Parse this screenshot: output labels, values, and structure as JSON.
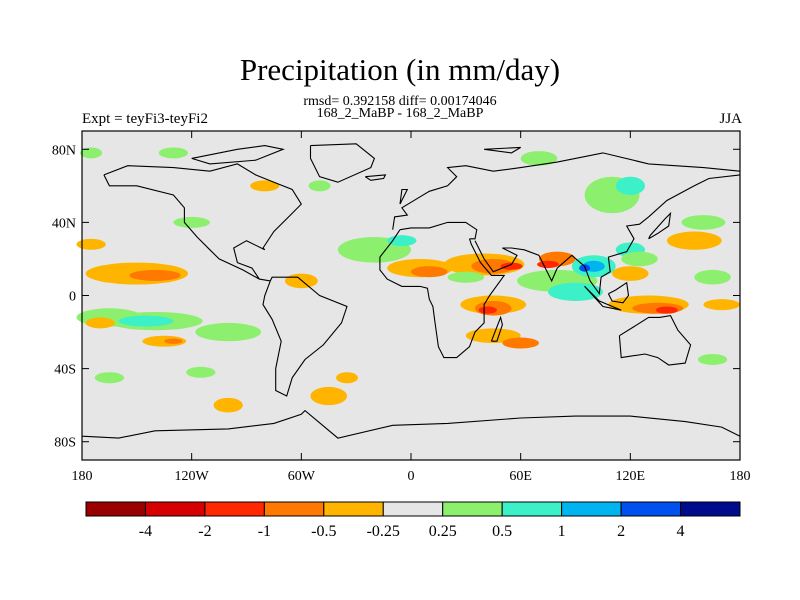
{
  "title": "Precipitation (in mm/day)",
  "stats": "rmsd= 0.392158 diff= 0.00174046",
  "subtitle": "168_2_MaBP - 168_2_MaBP",
  "left_label": "Expt = teyFi3-teyFi2",
  "right_label": "JJA",
  "map": {
    "lon_range": [
      -180,
      180
    ],
    "lat_range": [
      -90,
      90
    ],
    "x_ticks": [
      "180",
      "120W",
      "60W",
      "0",
      "60E",
      "120E",
      "180"
    ],
    "y_ticks": [
      "80N",
      "40N",
      "0",
      "40S",
      "80S"
    ],
    "background": "#e6e6e6"
  },
  "colorbar": {
    "labels": [
      "-4",
      "-2",
      "-1",
      "-0.5",
      "-0.25",
      "0.25",
      "0.5",
      "1",
      "2",
      "4"
    ],
    "colors": [
      "#9b0000",
      "#d60000",
      "#ff2800",
      "#ff7800",
      "#ffb400",
      "#e6e6e6",
      "#8cf06e",
      "#3cf0c8",
      "#00b4f0",
      "#0050f0",
      "#000a8c"
    ]
  },
  "levels": {
    "neg_weak": "#ffb400",
    "neg_mid": "#ff7800",
    "neg_strong": "#ff2800",
    "neg_max": "#d60000",
    "pos_weak": "#8cf06e",
    "pos_mid": "#3cf0c8",
    "pos_strong": "#00b4f0",
    "pos_max": "#0050f0"
  }
}
